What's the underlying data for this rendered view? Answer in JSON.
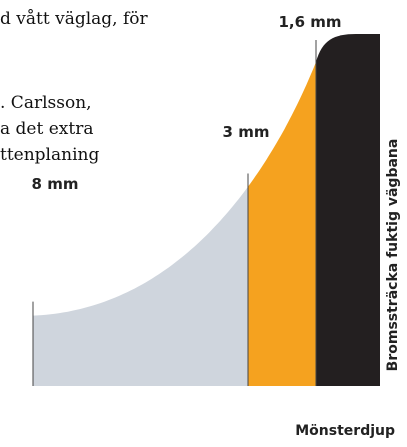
{
  "background_text": {
    "line1": "d vått väglag, för",
    "line2": ". Carlsson,",
    "line3": "a det extra",
    "line4": "ttenplaning"
  },
  "chart_data": {
    "type": "area",
    "title": "",
    "xlabel": "Mönsterdjup",
    "ylabel": "Bromssträcka fuktig vägbana",
    "points": [
      {
        "label": "8 mm",
        "relative_braking_distance": 0.2
      },
      {
        "label": "3 mm",
        "relative_braking_distance": 0.53
      },
      {
        "label": "1,6 mm",
        "relative_braking_distance": 1.0
      }
    ],
    "segments": [
      {
        "from": "8 mm",
        "to": "3 mm",
        "color": "#cfd5dd"
      },
      {
        "from": "3 mm",
        "to": "1,6 mm",
        "color": "#f5a21f"
      },
      {
        "from": "1,6 mm",
        "to": "",
        "color": "#231f20"
      }
    ],
    "grid": false,
    "legend": "none"
  }
}
